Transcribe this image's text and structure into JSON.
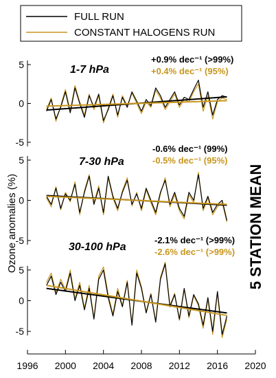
{
  "legend": {
    "entries": [
      {
        "label": "FULL RUN",
        "color": "#000000"
      },
      {
        "label": "CONSTANT HALOGENS RUN",
        "color": "#c8961e"
      }
    ]
  },
  "figure": {
    "ylabel": "Ozone anomalies (%)",
    "side_label": "5 STATION MEAN"
  },
  "chart_data": [
    {
      "type": "line",
      "panel_label": "1-7 hPa",
      "xlim": [
        1996,
        2020
      ],
      "ylim": [
        -5,
        5
      ],
      "yticks": [
        5,
        0,
        -5
      ],
      "trend_full": "+0.9% dec⁻¹ (>99%)",
      "trend_const": "+0.4% dec⁻¹ (95%)",
      "series": [
        {
          "name": "FULL RUN",
          "color": "#000000",
          "x": [
            1998.0,
            1998.5,
            1999.0,
            1999.5,
            2000.0,
            2000.5,
            2001.0,
            2001.5,
            2002.0,
            2002.5,
            2003.0,
            2003.5,
            2004.0,
            2004.5,
            2005.0,
            2005.5,
            2006.0,
            2006.5,
            2007.0,
            2007.5,
            2008.0,
            2008.5,
            2009.0,
            2009.5,
            2010.0,
            2010.5,
            2011.0,
            2011.5,
            2012.0,
            2012.5,
            2013.0,
            2013.5,
            2014.0,
            2014.5,
            2015.0,
            2015.5,
            2016.0,
            2016.5,
            2017.0
          ],
          "y": [
            -1.0,
            0.5,
            -2.0,
            -0.5,
            1.5,
            -1.2,
            2.0,
            0.0,
            -1.8,
            1.0,
            -0.5,
            1.2,
            -2.2,
            -0.8,
            1.0,
            -1.5,
            0.8,
            -0.5,
            1.5,
            0.3,
            -1.0,
            0.5,
            -0.3,
            2.0,
            1.0,
            -0.5,
            0.5,
            1.5,
            -0.2,
            0.8,
            0.5,
            1.8,
            3.0,
            -0.5,
            1.5,
            -1.5,
            0.5,
            1.0,
            0.8
          ]
        },
        {
          "name": "CONSTANT HALOGENS RUN",
          "color": "#c8961e",
          "x": [
            1998.0,
            1998.5,
            1999.0,
            1999.5,
            2000.0,
            2000.5,
            2001.0,
            2001.5,
            2002.0,
            2002.5,
            2003.0,
            2003.5,
            2004.0,
            2004.5,
            2005.0,
            2005.5,
            2006.0,
            2006.5,
            2007.0,
            2007.5,
            2008.0,
            2008.5,
            2009.0,
            2009.5,
            2010.0,
            2010.5,
            2011.0,
            2011.5,
            2012.0,
            2012.5,
            2013.0,
            2013.5,
            2014.0,
            2014.5,
            2015.0,
            2015.5,
            2016.0,
            2016.5,
            2017.0
          ],
          "y": [
            -0.8,
            0.7,
            -2.3,
            -0.3,
            1.8,
            -1.0,
            2.3,
            0.2,
            -1.5,
            1.2,
            -0.8,
            1.0,
            -2.5,
            -0.6,
            1.2,
            -1.8,
            1.0,
            -0.3,
            1.3,
            0.0,
            -1.3,
            0.2,
            -0.5,
            1.7,
            0.7,
            -0.8,
            0.2,
            1.2,
            -0.5,
            0.5,
            0.2,
            1.5,
            2.5,
            -1.0,
            1.0,
            -2.0,
            0.2,
            0.7,
            0.5
          ]
        }
      ],
      "trend_lines": [
        {
          "color": "#000000",
          "x": [
            1998,
            2017
          ],
          "y": [
            -0.85,
            0.85
          ]
        },
        {
          "color": "#c8961e",
          "x": [
            1998,
            2017
          ],
          "y": [
            -0.35,
            0.35
          ]
        }
      ]
    },
    {
      "type": "line",
      "panel_label": "7-30 hPa",
      "xlim": [
        1996,
        2020
      ],
      "ylim": [
        -5,
        5
      ],
      "yticks": [
        5,
        0,
        -5
      ],
      "trend_full": "-0.6% dec⁻¹ (99%)",
      "trend_const": "-0.5% dec⁻¹ (95%)",
      "series": [
        {
          "name": "FULL RUN",
          "color": "#000000",
          "x": [
            1998.0,
            1998.5,
            1999.0,
            1999.5,
            2000.0,
            2000.5,
            2001.0,
            2001.5,
            2002.0,
            2002.5,
            2003.0,
            2003.5,
            2004.0,
            2004.5,
            2005.0,
            2005.5,
            2006.0,
            2006.5,
            2007.0,
            2007.5,
            2008.0,
            2008.5,
            2009.0,
            2009.5,
            2010.0,
            2010.5,
            2011.0,
            2011.5,
            2012.0,
            2012.5,
            2013.0,
            2013.5,
            2014.0,
            2014.5,
            2015.0,
            2015.5,
            2016.0,
            2016.5,
            2017.0
          ],
          "y": [
            0.5,
            -0.5,
            1.5,
            -1.0,
            0.8,
            0.0,
            2.0,
            -1.5,
            1.0,
            3.0,
            -0.5,
            1.5,
            -1.5,
            3.0,
            0.5,
            -1.0,
            1.0,
            2.5,
            -0.5,
            0.8,
            -1.0,
            1.5,
            0.0,
            -1.5,
            1.0,
            2.5,
            -0.5,
            1.0,
            -1.0,
            -2.0,
            1.0,
            0.0,
            3.2,
            -1.0,
            0.5,
            -1.5,
            -0.5,
            0.0,
            -2.5
          ]
        },
        {
          "name": "CONSTANT HALOGENS RUN",
          "color": "#c8961e",
          "x": [
            1998.0,
            1998.5,
            1999.0,
            1999.5,
            2000.0,
            2000.5,
            2001.0,
            2001.5,
            2002.0,
            2002.5,
            2003.0,
            2003.5,
            2004.0,
            2004.5,
            2005.0,
            2005.5,
            2006.0,
            2006.5,
            2007.0,
            2007.5,
            2008.0,
            2008.5,
            2009.0,
            2009.5,
            2010.0,
            2010.5,
            2011.0,
            2011.5,
            2012.0,
            2012.5,
            2013.0,
            2013.5,
            2014.0,
            2014.5,
            2015.0,
            2015.5,
            2016.0,
            2016.5,
            2017.0
          ],
          "y": [
            0.3,
            -0.8,
            1.7,
            -1.2,
            1.0,
            -0.2,
            2.3,
            -1.8,
            1.2,
            3.2,
            -0.3,
            1.8,
            -1.8,
            2.8,
            0.3,
            -1.3,
            1.2,
            2.8,
            -0.7,
            1.0,
            -1.3,
            1.3,
            -0.3,
            -1.8,
            0.8,
            2.8,
            -0.8,
            0.7,
            -1.3,
            -2.3,
            0.7,
            -0.3,
            3.5,
            -1.3,
            0.3,
            -1.8,
            -0.8,
            -0.3,
            -2.7
          ]
        }
      ],
      "trend_lines": [
        {
          "color": "#000000",
          "x": [
            1998,
            2017
          ],
          "y": [
            0.6,
            -0.6
          ]
        },
        {
          "color": "#c8961e",
          "x": [
            1998,
            2017
          ],
          "y": [
            0.5,
            -0.5
          ]
        }
      ]
    },
    {
      "type": "line",
      "panel_label": "30-100 hPa",
      "xlim": [
        1996,
        2020
      ],
      "ylim": [
        -7,
        7
      ],
      "yticks": [
        5,
        0,
        -5
      ],
      "xticks": [
        1996,
        2000,
        2004,
        2008,
        2012,
        2016,
        2020
      ],
      "trend_full": "-2.1% dec⁻¹ (>99%)",
      "trend_const": "-2.6% dec⁻¹ (>99%)",
      "series": [
        {
          "name": "FULL RUN",
          "color": "#000000",
          "x": [
            1998.0,
            1998.5,
            1999.0,
            1999.5,
            2000.0,
            2000.5,
            2001.0,
            2001.5,
            2002.0,
            2002.5,
            2003.0,
            2003.5,
            2004.0,
            2004.5,
            2005.0,
            2005.5,
            2006.0,
            2006.5,
            2007.0,
            2007.5,
            2008.0,
            2008.5,
            2009.0,
            2009.5,
            2010.0,
            2010.5,
            2011.0,
            2011.5,
            2012.0,
            2012.5,
            2013.0,
            2013.5,
            2014.0,
            2014.5,
            2015.0,
            2015.5,
            2016.0,
            2016.5,
            2017.0
          ],
          "y": [
            2.5,
            4.0,
            1.0,
            3.0,
            1.5,
            4.5,
            0.0,
            2.5,
            -1.5,
            2.0,
            -3.0,
            3.5,
            5.0,
            0.5,
            -2.5,
            1.5,
            -1.0,
            3.0,
            -4.0,
            4.5,
            2.0,
            -2.0,
            1.0,
            -3.5,
            3.5,
            6.0,
            -1.0,
            1.0,
            -3.0,
            2.0,
            -2.5,
            1.0,
            -0.5,
            -4.0,
            0.5,
            -5.0,
            1.5,
            -5.5,
            -2.5
          ]
        },
        {
          "name": "CONSTANT HALOGENS RUN",
          "color": "#c8961e",
          "x": [
            1998.0,
            1998.5,
            1999.0,
            1999.5,
            2000.0,
            2000.5,
            2001.0,
            2001.5,
            2002.0,
            2002.5,
            2003.0,
            2003.5,
            2004.0,
            2004.5,
            2005.0,
            2005.5,
            2006.0,
            2006.5,
            2007.0,
            2007.5,
            2008.0,
            2008.5,
            2009.0,
            2009.5,
            2010.0,
            2010.5,
            2011.0,
            2011.5,
            2012.0,
            2012.5,
            2013.0,
            2013.5,
            2014.0,
            2014.5,
            2015.0,
            2015.5,
            2016.0,
            2016.5,
            2017.0
          ],
          "y": [
            3.0,
            4.5,
            1.3,
            3.5,
            1.8,
            5.0,
            0.3,
            3.0,
            -1.2,
            2.5,
            -2.8,
            4.0,
            5.5,
            1.0,
            -2.2,
            2.0,
            -0.8,
            3.3,
            -3.8,
            5.0,
            2.3,
            -1.8,
            1.2,
            -3.3,
            3.8,
            6.3,
            -0.8,
            1.2,
            -3.2,
            1.8,
            -2.8,
            0.8,
            -0.8,
            -4.5,
            0.2,
            -5.5,
            1.2,
            -6.0,
            -3.0
          ]
        }
      ],
      "trend_lines": [
        {
          "color": "#000000",
          "x": [
            1998,
            2017
          ],
          "y": [
            2.0,
            -2.0
          ]
        },
        {
          "color": "#c8961e",
          "x": [
            1998,
            2017
          ],
          "y": [
            2.5,
            -2.4
          ]
        }
      ]
    }
  ]
}
